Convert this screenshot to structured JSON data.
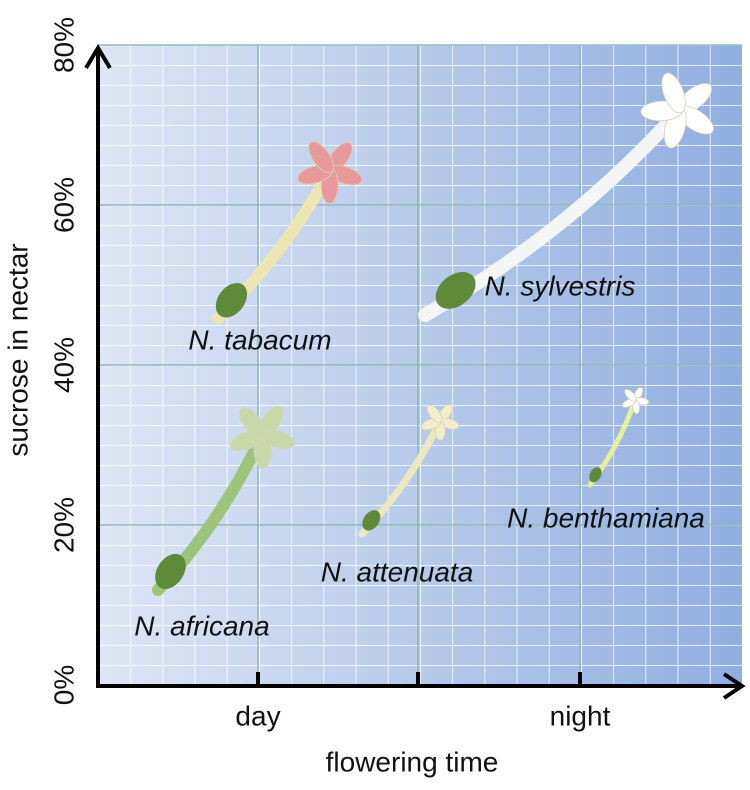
{
  "chart_data": {
    "type": "scatter",
    "y_label": "sucrose in nectar",
    "x_label": "flowering time",
    "categories": [
      "day",
      "night"
    ],
    "ylim": [
      0,
      80
    ],
    "yticks": [
      {
        "value": 0,
        "label": "0%"
      },
      {
        "value": 20,
        "label": "20%"
      },
      {
        "value": 40,
        "label": "40%"
      },
      {
        "value": 60,
        "label": "60%"
      },
      {
        "value": 80,
        "label": "80%"
      }
    ],
    "grid": true,
    "points": [
      {
        "name": "N. africana",
        "value": 22,
        "color": "#c8d8a8"
      },
      {
        "name": "N. tabacum",
        "value": 56,
        "color": "#e89a9a"
      },
      {
        "name": "N. attenuata",
        "value": 26,
        "color": "#f2eecc"
      },
      {
        "name": "N. sylvestris",
        "value": 60,
        "color": "#ffffff"
      },
      {
        "name": "N. benthamiana",
        "value": 31,
        "color": "#ffffff"
      }
    ]
  }
}
